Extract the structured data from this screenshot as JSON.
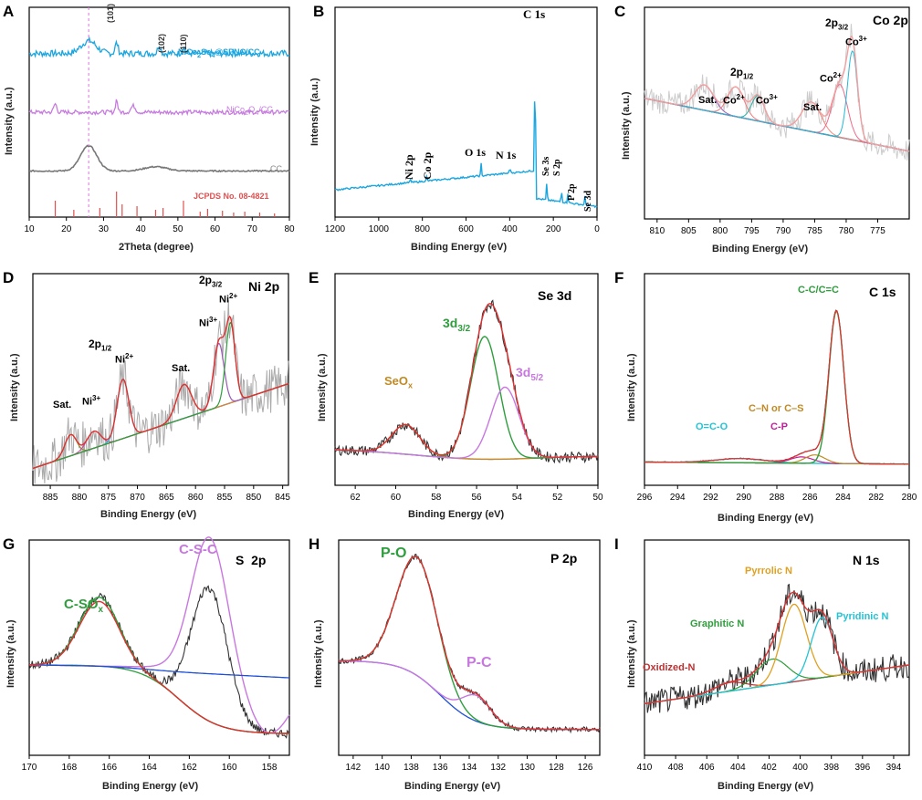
{
  "chart_data": [
    {
      "id": "A",
      "type": "line",
      "panel_label": "A",
      "xlabel": "2Theta (degree)",
      "ylabel": "Intensity (a.u.)",
      "xlim": [
        10,
        80
      ],
      "xticks": [
        10,
        20,
        30,
        40,
        50,
        60,
        70,
        80
      ],
      "annotations": [
        "(101)",
        "(102)",
        "(110)"
      ],
      "series": [
        {
          "name": "NiCo2Se4@SPNC/CC",
          "color": "#1aa6e0"
        },
        {
          "name": "NiCo2O4/CC",
          "color": "#c77be0"
        },
        {
          "name": "CC",
          "color": "#777777"
        },
        {
          "name": "JCPDS No. 08-4821",
          "color": "#e05050"
        }
      ],
      "legend_rich": [
        {
          "b": "NiCo",
          "s1": "2",
          "m": "Se",
          "s2": "4",
          "e": "@SPNC/CC"
        },
        {
          "b": "NiCo",
          "s1": "2",
          "m": "O",
          "s2": "4",
          "e": "/CC"
        }
      ],
      "reference_line_x": 26
    },
    {
      "id": "B",
      "type": "line",
      "panel_label": "B",
      "xlabel": "Binding Energy (eV)",
      "ylabel": "Intensity (a.u.)",
      "xlim": [
        1200,
        0
      ],
      "xticks": [
        1200,
        1000,
        800,
        600,
        400,
        200,
        0
      ],
      "peaks": [
        {
          "label": "Ni 2p",
          "x": 855
        },
        {
          "label": "Co 2p",
          "x": 780
        },
        {
          "label": "O 1s",
          "x": 532
        },
        {
          "label": "N 1s",
          "x": 399
        },
        {
          "label": "C 1s",
          "x": 284
        },
        {
          "label": "Se 3s",
          "x": 230
        },
        {
          "label": "S 2p",
          "x": 163
        },
        {
          "label": "P 2p",
          "x": 133
        },
        {
          "label": "Se 3d",
          "x": 55
        }
      ]
    },
    {
      "id": "C",
      "type": "line",
      "panel_label": "C",
      "title": "Co 2p",
      "xlabel": "Binding Energy (eV)",
      "ylabel": "Intensity (a.u.)",
      "xlim": [
        812,
        770
      ],
      "xticks": [
        810,
        805,
        800,
        795,
        790,
        785,
        780,
        775
      ],
      "peaks": [
        {
          "label": "Sat.",
          "x": 802.5
        },
        {
          "label": "Co2+",
          "x": 797.5
        },
        {
          "label": "Co3+",
          "x": 794
        },
        {
          "label": "Sat.",
          "x": 785.5
        },
        {
          "label": "Co2+",
          "x": 781
        },
        {
          "label": "Co3+",
          "x": 779
        }
      ],
      "annotations": [
        "2p1/2",
        "2p3/2"
      ]
    },
    {
      "id": "D",
      "type": "line",
      "panel_label": "D",
      "title": "Ni 2p",
      "xlabel": "Binding Energy (eV)",
      "ylabel": "Intensity (a.u.)",
      "xlim": [
        888,
        844
      ],
      "xticks": [
        885,
        880,
        875,
        870,
        865,
        860,
        855,
        850,
        845
      ],
      "peaks": [
        {
          "label": "Sat.",
          "x": 881.5
        },
        {
          "label": "Ni3+",
          "x": 877.5
        },
        {
          "label": "Ni2+",
          "x": 872.5
        },
        {
          "label": "Sat.",
          "x": 862
        },
        {
          "label": "Ni3+",
          "x": 856
        },
        {
          "label": "Ni2+",
          "x": 854
        }
      ],
      "annotations": [
        "2p1/2",
        "2p3/2"
      ]
    },
    {
      "id": "E",
      "type": "line",
      "panel_label": "E",
      "title": "Se 3d",
      "xlabel": "Binding Energy (eV)",
      "ylabel": "Intensity (a.u.)",
      "xlim": [
        63,
        50
      ],
      "xticks": [
        62,
        60,
        58,
        56,
        54,
        52,
        50
      ],
      "peaks": [
        {
          "label": "SeOx",
          "x": 59.5
        },
        {
          "label": "3d3/2",
          "x": 55.6
        },
        {
          "label": "3d5/2",
          "x": 54.6
        }
      ]
    },
    {
      "id": "F",
      "type": "line",
      "panel_label": "F",
      "title": "C 1s",
      "xlabel": "Binding Energy (eV)",
      "ylabel": "Intensity (a.u.)",
      "xlim": [
        296,
        280
      ],
      "xticks": [
        296,
        294,
        292,
        290,
        288,
        286,
        284,
        282,
        280
      ],
      "peaks": [
        {
          "label": "O=C-O",
          "x": 290.2
        },
        {
          "label": "C-P",
          "x": 286.5
        },
        {
          "label": "C–N or C–S",
          "x": 285.7
        },
        {
          "label": "C-C/C=C",
          "x": 284.4
        }
      ]
    },
    {
      "id": "G",
      "type": "line",
      "panel_label": "G",
      "title": "S  2p",
      "xlabel": "Binding Energy (eV)",
      "ylabel": "Intensity (a.u.)",
      "xlim": [
        170,
        157
      ],
      "xticks": [
        170,
        168,
        166,
        164,
        162,
        160,
        158
      ],
      "peaks": [
        {
          "label": "C-SOx",
          "x": 166.5
        },
        {
          "label": "C-S-C",
          "x": 161
        }
      ]
    },
    {
      "id": "H",
      "type": "line",
      "panel_label": "H",
      "title": "P 2p",
      "xlabel": "Binding Energy (eV)",
      "ylabel": "Intensity (a.u.)",
      "xlim": [
        143,
        125
      ],
      "xticks": [
        142,
        140,
        138,
        136,
        134,
        132,
        130,
        128,
        126
      ],
      "peaks": [
        {
          "label": "P-O",
          "x": 137.6
        },
        {
          "label": "P-C",
          "x": 133.5
        }
      ]
    },
    {
      "id": "I",
      "type": "line",
      "panel_label": "I",
      "title": "N 1s",
      "xlabel": "Binding Energy (eV)",
      "ylabel": "Intensity (a.u.)",
      "xlim": [
        410,
        393
      ],
      "xticks": [
        410,
        408,
        406,
        404,
        402,
        400,
        398,
        396,
        394
      ],
      "peaks": [
        {
          "label": "Oxidized-N",
          "x": 404.5
        },
        {
          "label": "Graphitic N",
          "x": 401.8
        },
        {
          "label": "Pyrrolic N",
          "x": 400.4
        },
        {
          "label": "Pyridinic N",
          "x": 398.6
        }
      ]
    }
  ]
}
